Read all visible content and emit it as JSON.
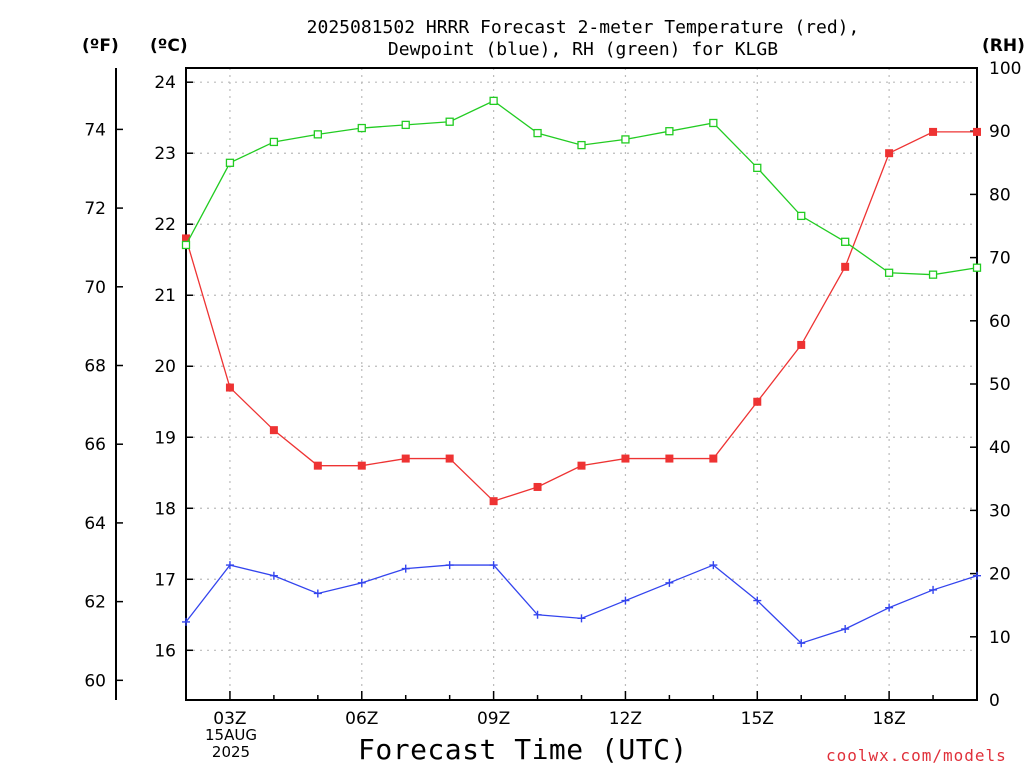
{
  "title": {
    "line1": "2025081502 HRRR Forecast 2-meter Temperature (red),",
    "line2": "Dewpoint (blue), RH (green) for KLGB"
  },
  "units": {
    "f": "(ºF)",
    "c": "(ºC)",
    "rh": "(RH)"
  },
  "x_axis": {
    "title": "Forecast Time (UTC)",
    "ticks": [
      "03Z",
      "06Z",
      "09Z",
      "12Z",
      "15Z",
      "18Z"
    ],
    "date_line1": "15AUG",
    "date_line2": "2025"
  },
  "credit": "coolwx.com/models",
  "colors": {
    "temperature": "#ee3333",
    "dewpoint": "#3344ee",
    "rh": "#22cc22",
    "grid": "#bbbbbb"
  },
  "chart_data": {
    "type": "line",
    "x": [
      2,
      3,
      4,
      5,
      6,
      7,
      8,
      9,
      10,
      11,
      12,
      13,
      14,
      15,
      16,
      17,
      18,
      19,
      20
    ],
    "x_unit": "hour UTC (2025-08-15)",
    "xlim": [
      2,
      20
    ],
    "ylim_c": [
      15.3,
      24.2
    ],
    "ylim_f": [
      59.5,
      75.56
    ],
    "ylim_rh": [
      0,
      100
    ],
    "y_ticks_c": [
      16,
      17,
      18,
      19,
      20,
      21,
      22,
      23,
      24
    ],
    "y_ticks_f": [
      60,
      62,
      64,
      66,
      68,
      70,
      72,
      74
    ],
    "y_ticks_rh": [
      0,
      10,
      20,
      30,
      40,
      50,
      60,
      70,
      80,
      90,
      100
    ],
    "grid": true,
    "series": [
      {
        "name": "Temperature",
        "axis": "c",
        "marker": "filled-square",
        "values": [
          21.8,
          19.7,
          19.1,
          18.6,
          18.6,
          18.7,
          18.7,
          18.1,
          18.3,
          18.6,
          18.7,
          18.7,
          18.7,
          19.5,
          20.3,
          21.4,
          23.0,
          23.3,
          23.3
        ]
      },
      {
        "name": "Dewpoint",
        "axis": "c",
        "marker": "plus",
        "values": [
          16.4,
          17.2,
          17.05,
          16.8,
          16.95,
          17.15,
          17.2,
          17.2,
          16.5,
          16.45,
          16.7,
          16.95,
          17.2,
          16.7,
          16.1,
          16.3,
          16.6,
          16.85,
          17.05
        ]
      },
      {
        "name": "RH",
        "axis": "rh",
        "marker": "open-square",
        "values": [
          72,
          85,
          88.3,
          89.5,
          90.5,
          91,
          91.5,
          94.8,
          89.7,
          87.8,
          88.7,
          90,
          91.3,
          84.2,
          76.6,
          72.5,
          67.6,
          67.3,
          68.4
        ]
      }
    ]
  }
}
